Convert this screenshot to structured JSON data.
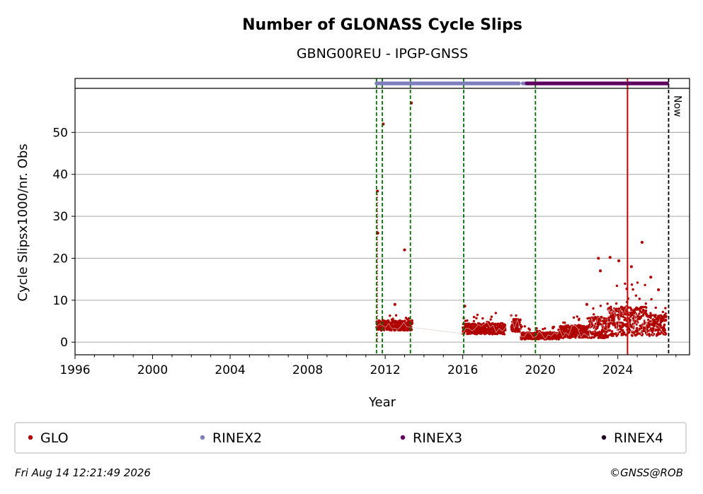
{
  "chart_data": {
    "type": "scatter",
    "title": "Number of GLONASS Cycle Slips",
    "subtitle": "GBNG00REU - IPGP-GNSS",
    "xlabel": "Year",
    "ylabel": "Cycle Slipsx1000/nr. Obs",
    "xlim": [
      1996.0,
      2027.7
    ],
    "ylim": [
      -3,
      60.5
    ],
    "xticks": [
      1996,
      2000,
      2004,
      2008,
      2012,
      2016,
      2020,
      2024
    ],
    "yticks": [
      0,
      10,
      20,
      30,
      40,
      50
    ],
    "grid": "horizontal",
    "now_label": "Now",
    "now_x": 2026.62,
    "red_vline_x": 2024.5,
    "green_dashed_x": [
      2011.55,
      2011.85,
      2013.3,
      2016.05,
      2019.75
    ],
    "series": [
      {
        "name": "GLO",
        "color": "#b00000",
        "segments": [
          {
            "x_start": 2011.55,
            "x_end": 2013.4,
            "base": 4.0,
            "spread": 1.2
          },
          {
            "x_start": 2016.0,
            "x_end": 2018.2,
            "base": 3.2,
            "spread": 1.3
          },
          {
            "x_start": 2018.5,
            "x_end": 2019.0,
            "base": 4.0,
            "spread": 1.5
          },
          {
            "x_start": 2019.0,
            "x_end": 2021.0,
            "base": 1.5,
            "spread": 0.8
          },
          {
            "x_start": 2021.0,
            "x_end": 2022.5,
            "base": 2.5,
            "spread": 1.5
          },
          {
            "x_start": 2022.5,
            "x_end": 2023.5,
            "base": 3.5,
            "spread": 2.5
          },
          {
            "x_start": 2023.5,
            "x_end": 2025.5,
            "base": 5.0,
            "spread": 3.5
          },
          {
            "x_start": 2025.5,
            "x_end": 2026.5,
            "base": 4.0,
            "spread": 2.5
          }
        ],
        "outliers": [
          [
            2011.6,
            36
          ],
          [
            2011.62,
            26
          ],
          [
            2011.9,
            52
          ],
          [
            2013.35,
            57
          ],
          [
            2013.0,
            22
          ],
          [
            2012.5,
            9
          ],
          [
            2016.1,
            8.6
          ],
          [
            2023.0,
            20
          ],
          [
            2023.6,
            20.2
          ],
          [
            2024.05,
            19.4
          ],
          [
            2024.7,
            18
          ],
          [
            2025.25,
            23.8
          ],
          [
            2025.7,
            15.5
          ],
          [
            2026.1,
            12.5
          ],
          [
            2022.4,
            9
          ],
          [
            2023.1,
            17
          ]
        ]
      },
      {
        "name": "RINEX2",
        "color": "#7f7fbf",
        "ranges": [
          [
            2011.55,
            2018.9
          ],
          [
            2019.1,
            2019.3
          ]
        ]
      },
      {
        "name": "RINEX3",
        "color": "#5f005f",
        "ranges": [
          [
            2019.3,
            2026.55
          ]
        ]
      },
      {
        "name": "RINEX4",
        "color": "#1a0022",
        "ranges": []
      }
    ]
  },
  "footer": {
    "timestamp": "Fri Aug 14 12:21:49 2026",
    "credit": "©GNSS@ROB"
  }
}
